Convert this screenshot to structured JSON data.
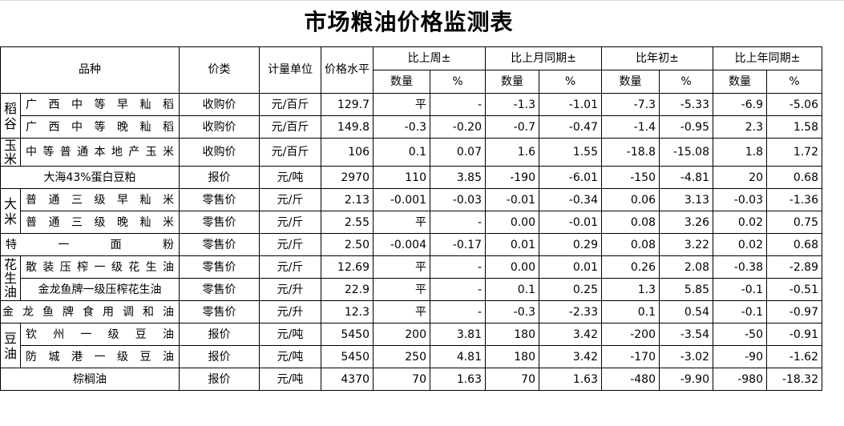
{
  "title": "市场粮油价格监测表",
  "headers": {
    "variety": "品种",
    "price_type": "价类",
    "unit": "计量单位",
    "price_level": "价格水平",
    "vs_last_week": "比上周±",
    "vs_last_month": "比上月同期±",
    "vs_year_start": "比年初±",
    "vs_last_year": "比上年同期±",
    "qty": "数量",
    "pct": "%"
  },
  "groups": {
    "rice_paddy": "稻谷",
    "corn": "玉米",
    "rice": "大米",
    "peanut_oil": "花生油",
    "soy_oil": "豆油"
  },
  "rows": [
    {
      "name": "广西中等早籼稻",
      "price_type": "收购价",
      "unit": "元/百斤",
      "price": "129.7",
      "w_q": "平",
      "w_p": "-",
      "m_q": "-1.3",
      "m_p": "-1.01",
      "y_q": "-7.3",
      "y_p": "-5.33",
      "ly_q": "-6.9",
      "ly_p": "-5.06"
    },
    {
      "name": "广西中等晚籼稻",
      "price_type": "收购价",
      "unit": "元/百斤",
      "price": "149.8",
      "w_q": "-0.3",
      "w_p": "-0.20",
      "m_q": "-0.7",
      "m_p": "-0.47",
      "y_q": "-1.4",
      "y_p": "-0.95",
      "ly_q": "2.3",
      "ly_p": "1.58"
    },
    {
      "name": "中等普通本地产玉米",
      "price_type": "收购价",
      "unit": "元/百斤",
      "price": "106",
      "w_q": "0.1",
      "w_p": "0.07",
      "m_q": "1.6",
      "m_p": "1.55",
      "y_q": "-18.8",
      "y_p": "-15.08",
      "ly_q": "1.8",
      "ly_p": "1.72"
    },
    {
      "name": "大海43%蛋白豆粕",
      "price_type": "报价",
      "unit": "元/吨",
      "price": "2970",
      "w_q": "110",
      "w_p": "3.85",
      "m_q": "-190",
      "m_p": "-6.01",
      "y_q": "-150",
      "y_p": "-4.81",
      "ly_q": "20",
      "ly_p": "0.68"
    },
    {
      "name": "普通三级早籼米",
      "price_type": "零售价",
      "unit": "元/斤",
      "price": "2.13",
      "w_q": "-0.001",
      "w_p": "-0.03",
      "m_q": "-0.01",
      "m_p": "-0.34",
      "y_q": "0.06",
      "y_p": "3.13",
      "ly_q": "-0.03",
      "ly_p": "-1.36"
    },
    {
      "name": "普通三级晚籼米",
      "price_type": "零售价",
      "unit": "元/斤",
      "price": "2.55",
      "w_q": "平",
      "w_p": "-",
      "m_q": "0.00",
      "m_p": "-0.01",
      "y_q": "0.08",
      "y_p": "3.26",
      "ly_q": "0.02",
      "ly_p": "0.75"
    },
    {
      "name": "特一面粉",
      "price_type": "零售价",
      "unit": "元/斤",
      "price": "2.50",
      "w_q": "-0.004",
      "w_p": "-0.17",
      "m_q": "0.01",
      "m_p": "0.29",
      "y_q": "0.08",
      "y_p": "3.22",
      "ly_q": "0.02",
      "ly_p": "0.68"
    },
    {
      "name": "散装压榨一级花生油",
      "price_type": "零售价",
      "unit": "元/斤",
      "price": "12.69",
      "w_q": "平",
      "w_p": "-",
      "m_q": "0.00",
      "m_p": "0.01",
      "y_q": "0.26",
      "y_p": "2.08",
      "ly_q": "-0.38",
      "ly_p": "-2.89"
    },
    {
      "name": "金龙鱼牌一级压榨花生油",
      "price_type": "零售价",
      "unit": "元/升",
      "price": "22.9",
      "w_q": "平",
      "w_p": "-",
      "m_q": "0.1",
      "m_p": "0.25",
      "y_q": "1.3",
      "y_p": "5.85",
      "ly_q": "-0.1",
      "ly_p": "-0.51"
    },
    {
      "name": "金龙鱼牌食用调和油",
      "price_type": "零售价",
      "unit": "元/升",
      "price": "12.3",
      "w_q": "平",
      "w_p": "-",
      "m_q": "-0.3",
      "m_p": "-2.33",
      "y_q": "0.1",
      "y_p": "0.54",
      "ly_q": "-0.1",
      "ly_p": "-0.97"
    },
    {
      "name": "钦州一级豆油",
      "price_type": "报价",
      "unit": "元/吨",
      "price": "5450",
      "w_q": "200",
      "w_p": "3.81",
      "m_q": "180",
      "m_p": "3.42",
      "y_q": "-200",
      "y_p": "-3.54",
      "ly_q": "-50",
      "ly_p": "-0.91"
    },
    {
      "name": "防城港一级豆油",
      "price_type": "报价",
      "unit": "元/吨",
      "price": "5450",
      "w_q": "250",
      "w_p": "4.81",
      "m_q": "180",
      "m_p": "3.42",
      "y_q": "-170",
      "y_p": "-3.02",
      "ly_q": "-90",
      "ly_p": "-1.62"
    },
    {
      "name": "棕榈油",
      "price_type": "报价",
      "unit": "元/吨",
      "price": "4370",
      "w_q": "70",
      "w_p": "1.63",
      "m_q": "70",
      "m_p": "1.63",
      "y_q": "-480",
      "y_p": "-9.90",
      "ly_q": "-980",
      "ly_p": "-18.32"
    }
  ]
}
